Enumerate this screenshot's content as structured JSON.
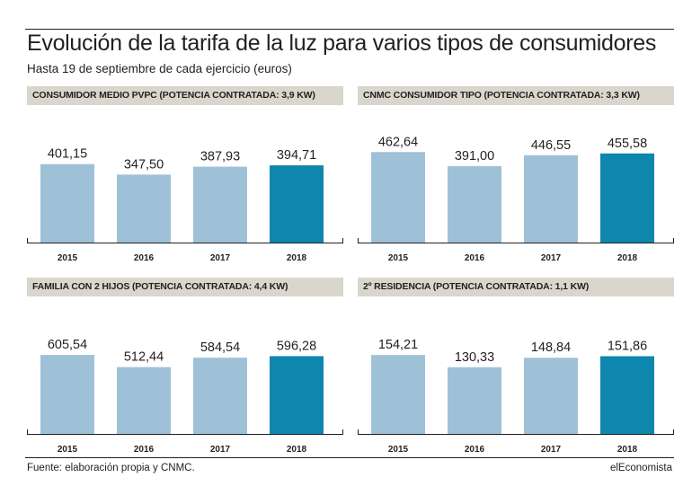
{
  "header": {
    "title": "Evolución de la tarifa de la luz para varios tipos de consumidores",
    "subtitle": "Hasta 19 de septiembre de cada ejercicio (euros)"
  },
  "footer": {
    "source": "Fuente: elaboración propia y CNMC.",
    "brand": "elEconomista"
  },
  "colors": {
    "bar_past": "#9fc1d8",
    "bar_current": "#0e86ad",
    "header_bg": "#d9d7cd",
    "axis": "#231f20"
  },
  "chart_data": [
    {
      "type": "bar",
      "title": "CONSUMIDOR MEDIO PVPC (POTENCIA CONTRATADA: 3,9 KW)",
      "categories": [
        "2015",
        "2016",
        "2017",
        "2018"
      ],
      "values": [
        401.15,
        347.5,
        387.93,
        394.71
      ],
      "value_labels": [
        "401,15",
        "347,50",
        "387,93",
        "394,71"
      ],
      "ylim": [
        0,
        620
      ]
    },
    {
      "type": "bar",
      "title": "CNMC CONSUMIDOR TIPO (POTENCIA CONTRATADA: 3,3 KW)",
      "categories": [
        "2015",
        "2016",
        "2017",
        "2018"
      ],
      "values": [
        462.64,
        391.0,
        446.55,
        455.58
      ],
      "value_labels": [
        "462,64",
        "391,00",
        "446,55",
        "455,58"
      ],
      "ylim": [
        0,
        620
      ]
    },
    {
      "type": "bar",
      "title": "FAMILIA CON 2 HIJOS (POTENCIA CONTRATADA: 4,4 KW)",
      "categories": [
        "2015",
        "2016",
        "2017",
        "2018"
      ],
      "values": [
        605.54,
        512.44,
        584.54,
        596.28
      ],
      "value_labels": [
        "605,54",
        "512,44",
        "584,54",
        "596,28"
      ],
      "ylim": [
        0,
        930
      ]
    },
    {
      "type": "bar",
      "title": "2º RESIDENCIA (POTENCIA CONTRATADA: 1,1 KW)",
      "categories": [
        "2015",
        "2016",
        "2017",
        "2018"
      ],
      "values": [
        154.21,
        130.33,
        148.84,
        151.86
      ],
      "value_labels": [
        "154,21",
        "130,33",
        "148,84",
        "151,86"
      ],
      "ylim": [
        0,
        237
      ]
    }
  ]
}
